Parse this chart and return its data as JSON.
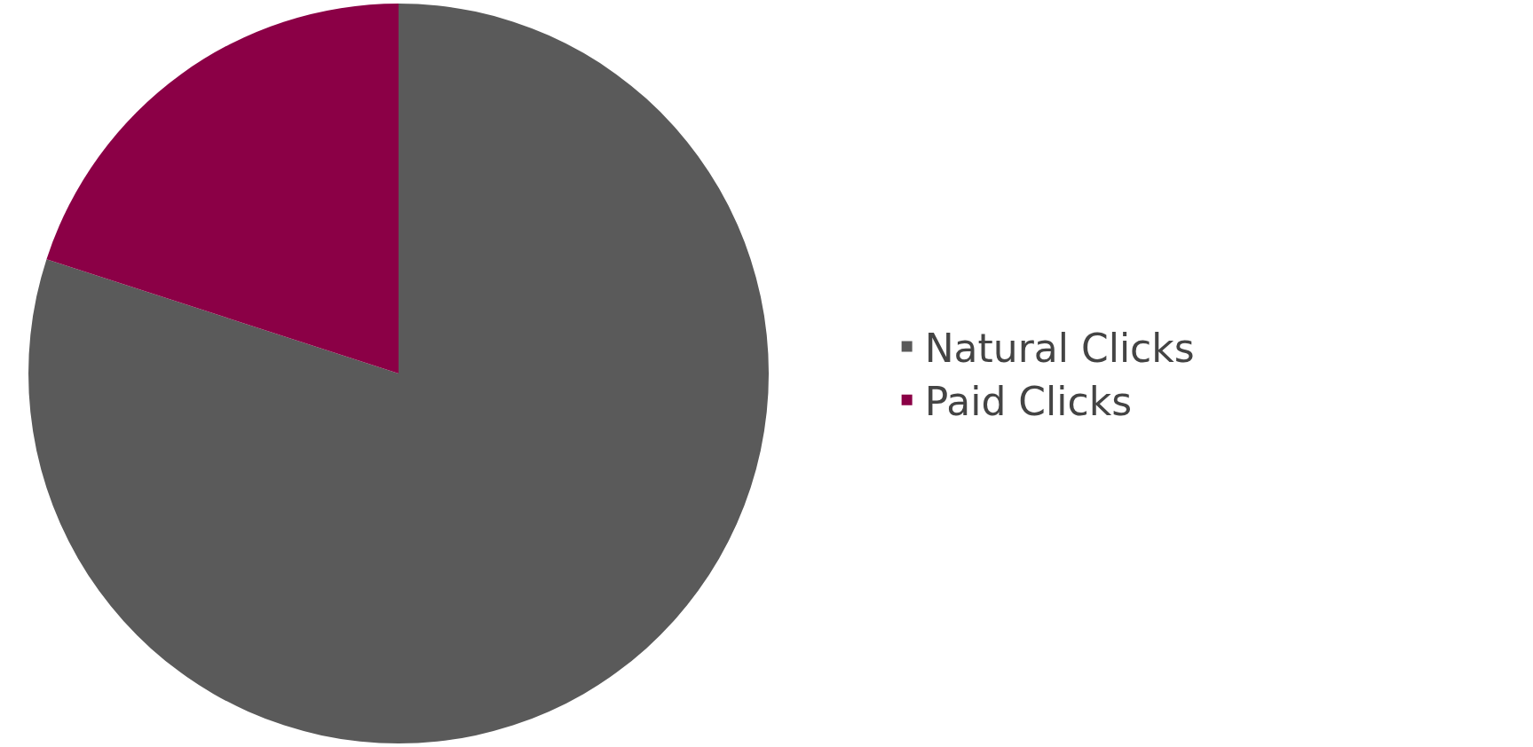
{
  "chart_data": {
    "type": "pie",
    "categories": [
      "Natural Clicks",
      "Paid Clicks"
    ],
    "values": [
      80,
      20
    ],
    "colors": [
      "#5a5a5a",
      "#8b0046"
    ],
    "legend": "right"
  }
}
